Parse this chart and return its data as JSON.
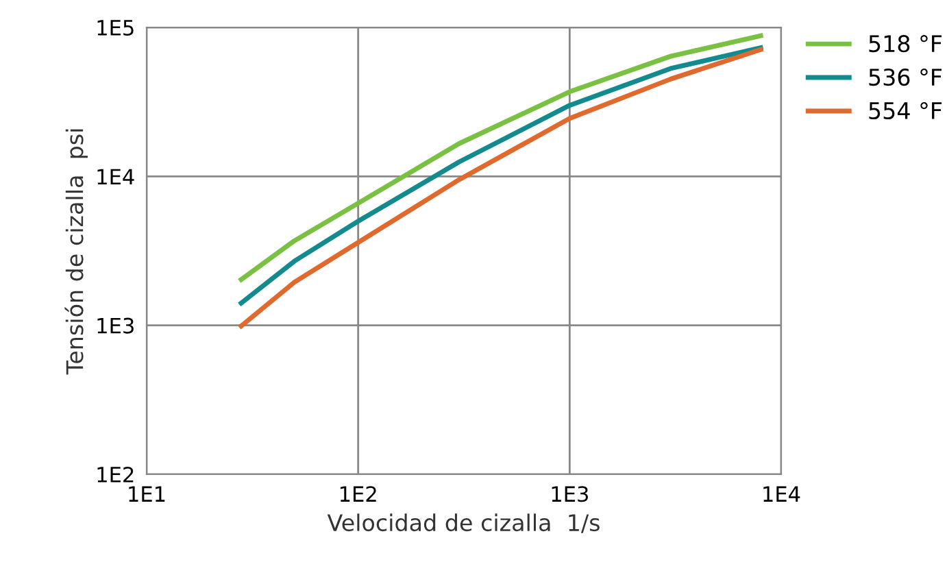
{
  "chart_data": {
    "type": "line",
    "xlabel": "Velocidad de cizalla  1/s",
    "ylabel": "Tensión de cizalla  psi",
    "log": "xy",
    "grid": true,
    "legend": "top right",
    "marker": "none",
    "line_style": "solid",
    "xlim": [
      10,
      10000
    ],
    "ylim": [
      100,
      100000
    ],
    "xticks": [
      {
        "value": 10,
        "label": "1E1"
      },
      {
        "value": 100,
        "label": "1E2"
      },
      {
        "value": 1000,
        "label": "1E3"
      },
      {
        "value": 10000,
        "label": "1E4"
      }
    ],
    "yticks": [
      {
        "value": 100,
        "label": "1E2"
      },
      {
        "value": 1000,
        "label": "1E3"
      },
      {
        "value": 10000,
        "label": "1E4"
      },
      {
        "value": 100000,
        "label": "1E5"
      }
    ],
    "x": [
      28,
      50,
      100,
      300,
      1000,
      3000,
      8000
    ],
    "series": [
      {
        "name": "518 °F",
        "color": "#7ac143",
        "values": [
          2030,
          3700,
          6600,
          16600,
          37000,
          64000,
          88000
        ]
      },
      {
        "name": "536 °F",
        "color": "#138a8e",
        "values": [
          1410,
          2700,
          5000,
          12500,
          30000,
          53000,
          73000
        ]
      },
      {
        "name": "554 °F",
        "color": "#e0692e",
        "values": [
          990,
          1950,
          3600,
          9500,
          24500,
          45000,
          71000
        ]
      }
    ]
  }
}
